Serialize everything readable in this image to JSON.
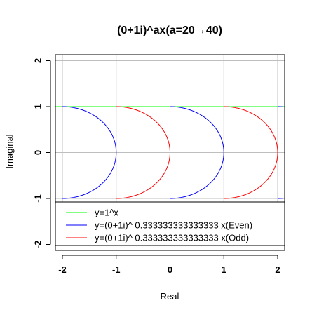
{
  "chart_data": {
    "type": "line",
    "title": "(0+1i)^ax(a=20→40)",
    "xlabel": "Real",
    "ylabel": "Imaginal",
    "xlim": [
      -2.13,
      2.13
    ],
    "ylim": [
      -2.13,
      2.13
    ],
    "x_ticks": [
      -2,
      -1,
      0,
      1,
      2
    ],
    "y_ticks": [
      -2,
      -1,
      0,
      1,
      2
    ],
    "grid": true,
    "legend_position": "bottom-left",
    "colors": {
      "green": "#00ff00",
      "blue": "#0000ff",
      "red": "#ff0000",
      "grid": "#bebebe"
    },
    "series": [
      {
        "name": "y=1^x",
        "color": "#00ff00",
        "kind": "segment",
        "points": [
          [
            -2.13,
            1
          ],
          [
            2.13,
            1
          ]
        ]
      },
      {
        "name": "y=(0+1i)^ 0.333333333333333 x(Even)",
        "color": "#0000ff",
        "kind": "semicircle",
        "arcs": [
          {
            "center": [
              -2,
              0
            ],
            "radius": 1,
            "from_deg": 90,
            "to_deg": -90
          },
          {
            "center": [
              0,
              0
            ],
            "radius": 1,
            "from_deg": 90,
            "to_deg": -90
          },
          {
            "center": [
              2,
              0
            ],
            "radius": 1,
            "from_deg": 90,
            "to_deg": -90
          }
        ]
      },
      {
        "name": "y=(0+1i)^ 0.333333333333333 x(Odd)",
        "color": "#ff0000",
        "kind": "semicircle",
        "arcs": [
          {
            "center": [
              -1,
              0
            ],
            "radius": 1,
            "from_deg": 90,
            "to_deg": -90
          },
          {
            "center": [
              1,
              0
            ],
            "radius": 1,
            "from_deg": 90,
            "to_deg": -90
          }
        ]
      }
    ]
  }
}
